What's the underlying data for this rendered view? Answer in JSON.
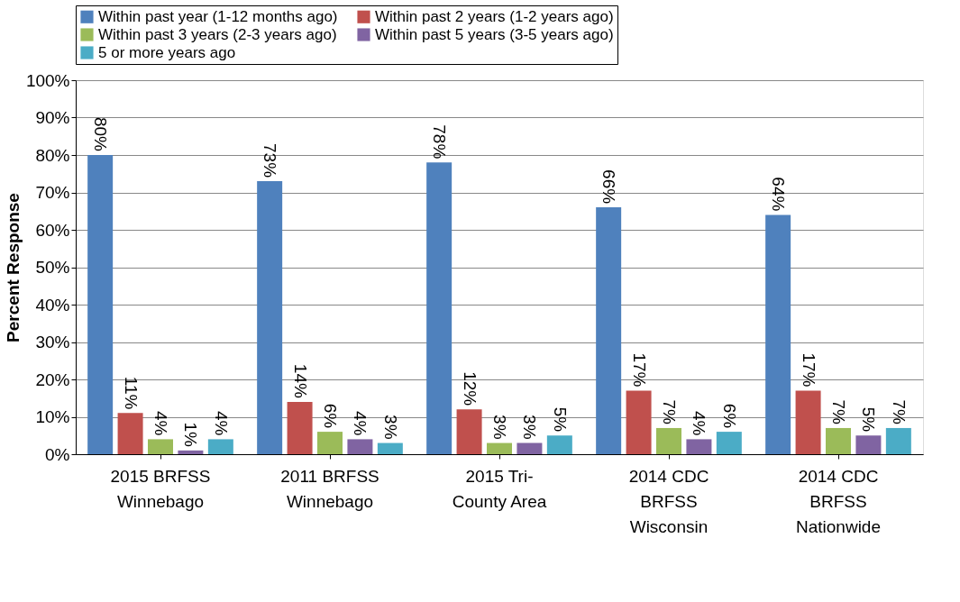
{
  "chart_data": {
    "type": "bar",
    "ylabel": "Percent Response",
    "categories": [
      "2015 BRFSS\nWinnebago",
      "2011 BRFSS\nWinnebago",
      "2015 Tri-\nCounty Area",
      "2014 CDC\nBRFSS\nWisconsin",
      "2014 CDC\nBRFSS\nNationwide"
    ],
    "series": [
      {
        "name": "Within past year (1-12 months ago)",
        "color": "#4f81bd",
        "values": [
          80,
          73,
          78,
          66,
          64
        ],
        "value_labels": [
          "80%",
          "73%",
          "78%",
          "66%",
          "64%"
        ]
      },
      {
        "name": "Within past 2 years (1-2 years ago)",
        "color": "#c0504d",
        "values": [
          11,
          14,
          12,
          17,
          17
        ],
        "value_labels": [
          "11%",
          "14%",
          "12%",
          "17%",
          "17%"
        ]
      },
      {
        "name": "Within past 3 years (2-3 years ago)",
        "color": "#9bbb59",
        "values": [
          4,
          6,
          3,
          7,
          7
        ],
        "value_labels": [
          "4%",
          "6%",
          "3%",
          "7%",
          "7%"
        ]
      },
      {
        "name": "Within past 5 years (3-5 years ago)",
        "color": "#8064a2",
        "values": [
          1,
          4,
          3,
          4,
          5
        ],
        "value_labels": [
          "1%",
          "4%",
          "3%",
          "4%",
          "5%"
        ]
      },
      {
        "name": "5 or more years ago",
        "color": "#4bacc6",
        "values": [
          4,
          3,
          5,
          6,
          7
        ],
        "value_labels": [
          "4%",
          "3%",
          "5%",
          "6%",
          "7%"
        ]
      }
    ],
    "ylim": [
      0,
      100
    ],
    "yticks": [
      {
        "value": 0,
        "label": "0%"
      },
      {
        "value": 10,
        "label": "10%"
      },
      {
        "value": 20,
        "label": "20%"
      },
      {
        "value": 30,
        "label": "30%"
      },
      {
        "value": 40,
        "label": "40%"
      },
      {
        "value": 50,
        "label": "50%"
      },
      {
        "value": 60,
        "label": "60%"
      },
      {
        "value": 70,
        "label": "70%"
      },
      {
        "value": 80,
        "label": "80%"
      },
      {
        "value": 90,
        "label": "90%"
      },
      {
        "value": 100,
        "label": "100%"
      }
    ],
    "grid": "y",
    "legend": "top"
  }
}
